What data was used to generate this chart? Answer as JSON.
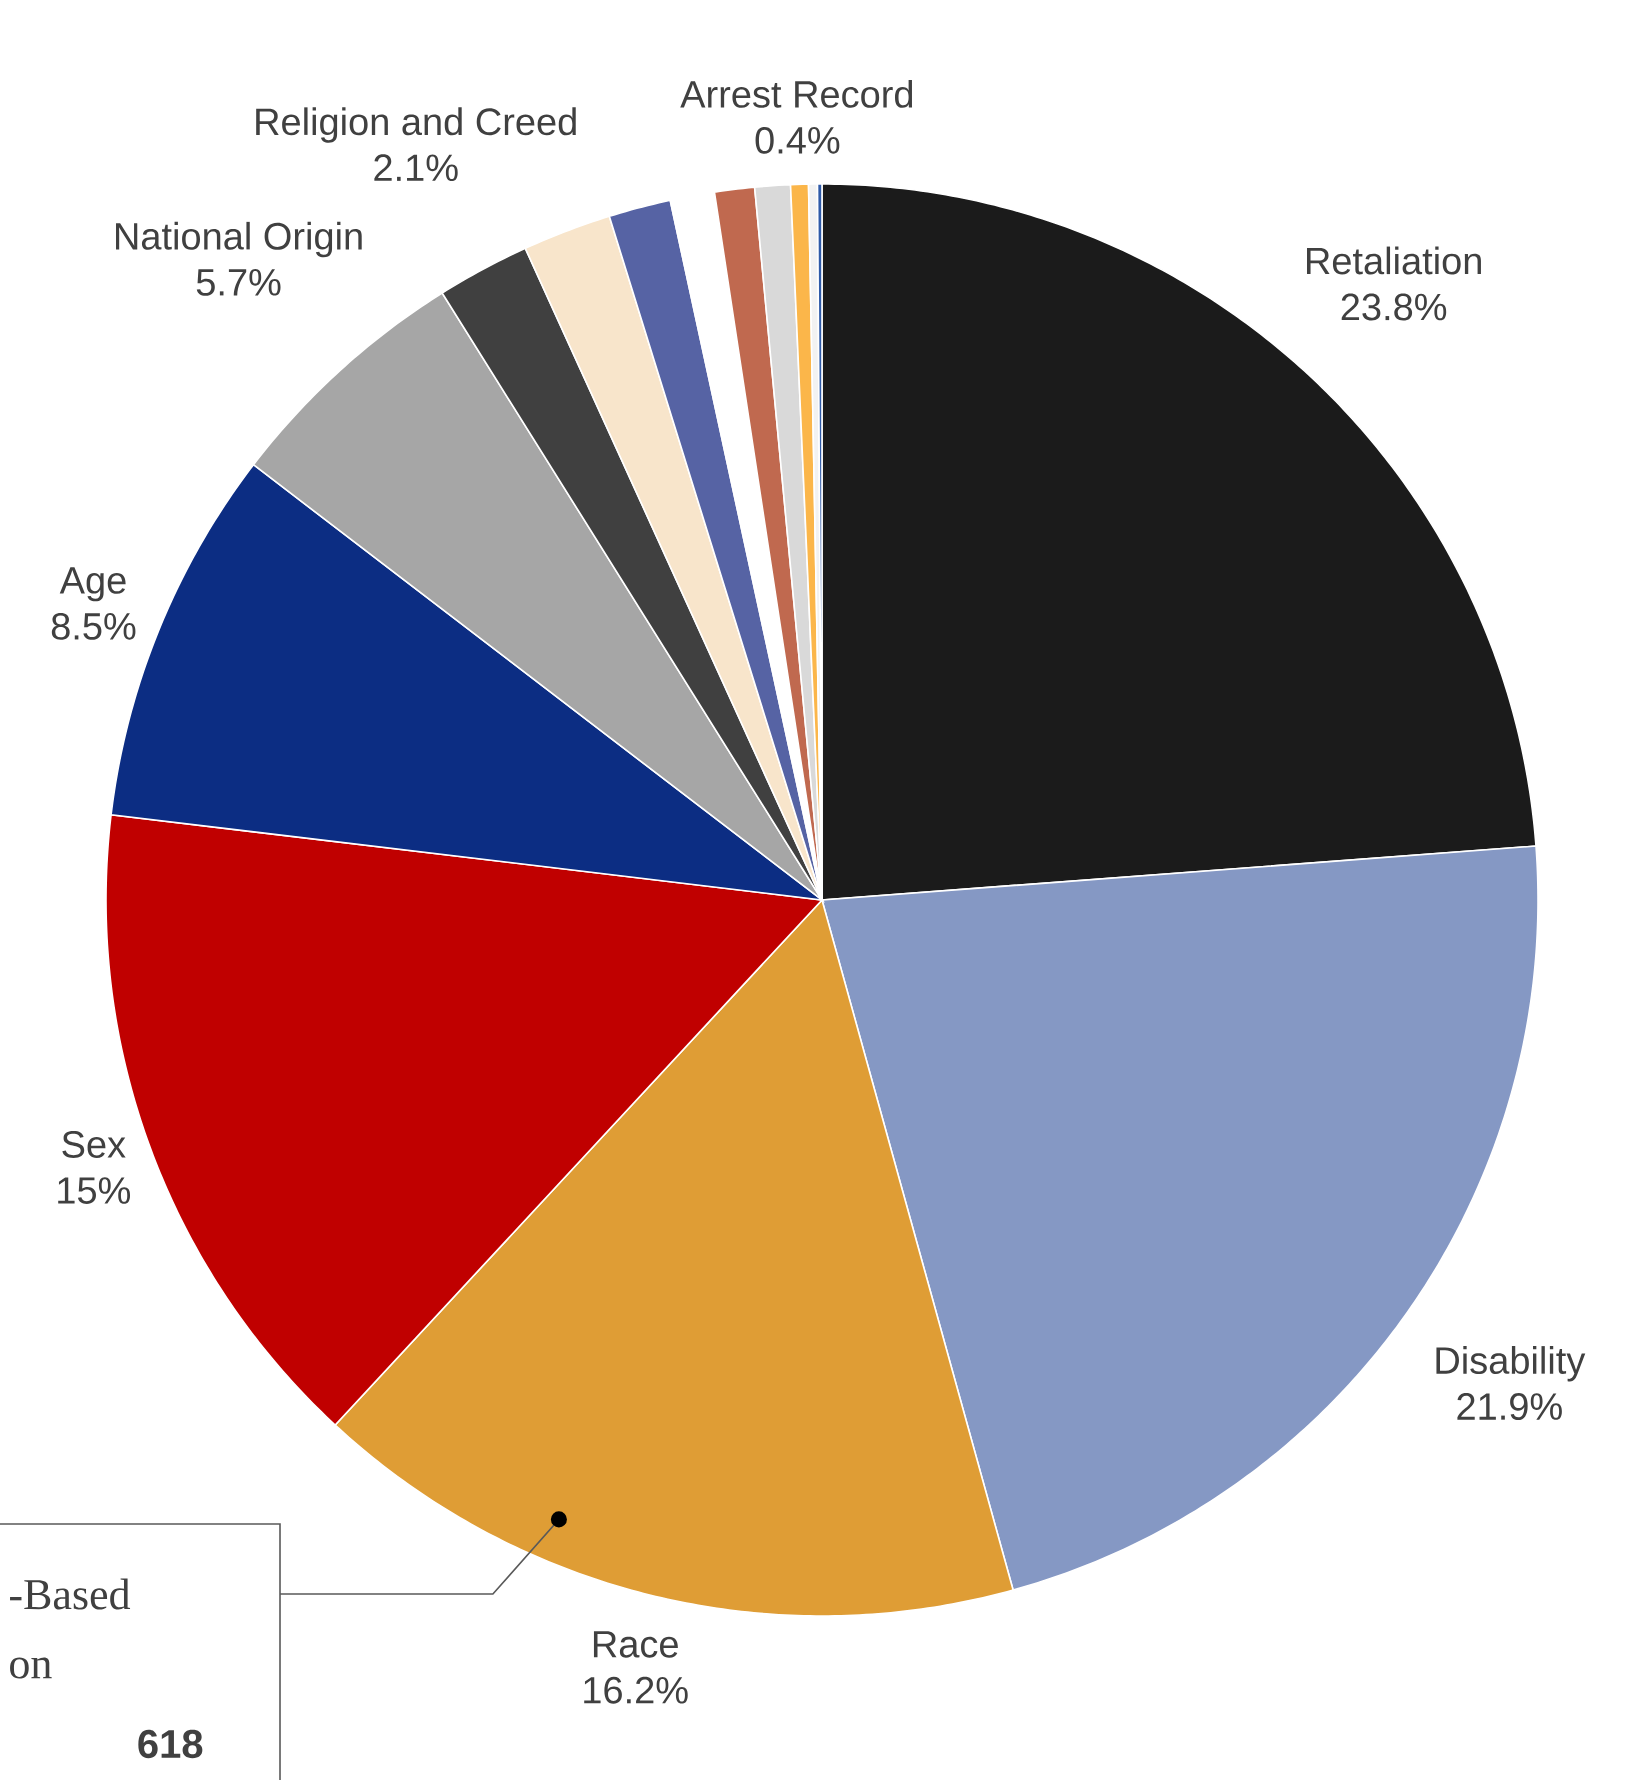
{
  "chart_data": {
    "type": "pie",
    "categories": [
      "Retaliation",
      "Disability",
      "Race",
      "Sex",
      "Age",
      "National Origin",
      "Religion and Creed",
      null,
      null,
      null,
      null,
      null,
      "Arrest Record",
      null,
      null
    ],
    "values": [
      23.8,
      21.9,
      16.2,
      15,
      8.5,
      5.7,
      2.1,
      2.0,
      1.4,
      1.0,
      0.9,
      0.8,
      0.4,
      0.2,
      0.1
    ],
    "colors": [
      "#1b1b1b",
      "#8598c4",
      "#df9d35",
      "#c00000",
      "#0c2d83",
      "#a6a6a6",
      "#404040",
      "#f8e5cb",
      "#5663a4",
      "#ffffff",
      "#c0694f",
      "#d9d9d9",
      "#fbb64a",
      "#f2f2f2",
      "#2e5aa8"
    ],
    "value_labels": [
      "23.8%",
      "21.9%",
      "16.2%",
      "15%",
      "8.5%",
      "5.7%",
      "2.1%",
      null,
      null,
      null,
      null,
      null,
      "0.4%",
      null,
      null
    ],
    "annotations": [
      {
        "text": "-Based",
        "x": "Race"
      },
      "on",
      "618"
    ]
  }
}
